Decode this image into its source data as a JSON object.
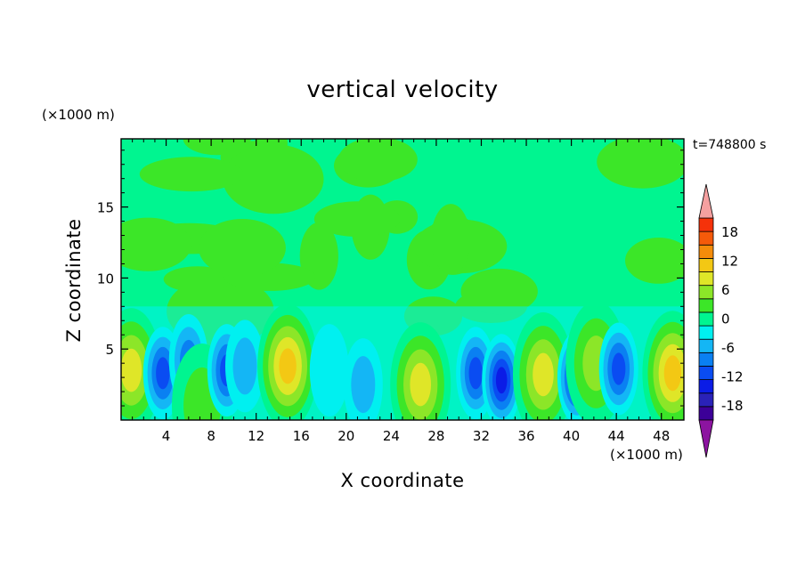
{
  "chart_data": {
    "type": "heatmap",
    "title": "vertical velocity",
    "xlabel": "X coordinate",
    "ylabel": "Z coordinate",
    "x_multiplier": "(×1000 m)",
    "y_multiplier": "(×1000 m)",
    "time_label": "t=748800 s",
    "xlim": [
      0,
      50
    ],
    "ylim": [
      0,
      19.8
    ],
    "x_ticks": [
      4,
      8,
      12,
      16,
      20,
      24,
      28,
      32,
      36,
      40,
      44,
      48
    ],
    "y_ticks": [
      5,
      10,
      15
    ],
    "colorbar": {
      "levels": [
        -21,
        -18,
        -15,
        -12,
        -9,
        -6,
        -3,
        0,
        3,
        6,
        9,
        12,
        15,
        18,
        21
      ],
      "labels": [
        18,
        12,
        6,
        0,
        -6,
        -12,
        -18
      ],
      "colors": [
        "#3c0098",
        "#2a22b8",
        "#0b1ce6",
        "#0a4cf2",
        "#0a80f2",
        "#14b6f5",
        "#00f0f0",
        "#00f590",
        "#3ce628",
        "#8ce628",
        "#dfe628",
        "#f3c814",
        "#f58c0a",
        "#f55a0a",
        "#f5320a"
      ],
      "over_color": "#f5a0a0",
      "under_color": "#8c14a0"
    },
    "features": [
      {
        "x": 0.9,
        "z": 3.5,
        "value": 12
      },
      {
        "x": 3.7,
        "z": 3.3,
        "value": -11
      },
      {
        "x": 6.0,
        "z": 4.2,
        "value": -7
      },
      {
        "x": 7.2,
        "z": 1.0,
        "value": 5
      },
      {
        "x": 9.4,
        "z": 3.5,
        "value": -10
      },
      {
        "x": 11.0,
        "z": 3.8,
        "value": -4
      },
      {
        "x": 14.8,
        "z": 3.8,
        "value": 13
      },
      {
        "x": 18.5,
        "z": 3.5,
        "value": -3
      },
      {
        "x": 21.5,
        "z": 2.5,
        "value": -5
      },
      {
        "x": 26.6,
        "z": 2.5,
        "value": 10
      },
      {
        "x": 31.5,
        "z": 3.3,
        "value": -11
      },
      {
        "x": 33.8,
        "z": 2.8,
        "value": -13
      },
      {
        "x": 37.5,
        "z": 3.2,
        "value": 11
      },
      {
        "x": 40.5,
        "z": 3.0,
        "value": -13
      },
      {
        "x": 42.2,
        "z": 4.0,
        "value": 7
      },
      {
        "x": 44.2,
        "z": 3.6,
        "value": -12
      },
      {
        "x": 49.0,
        "z": 3.3,
        "value": 15
      }
    ]
  }
}
